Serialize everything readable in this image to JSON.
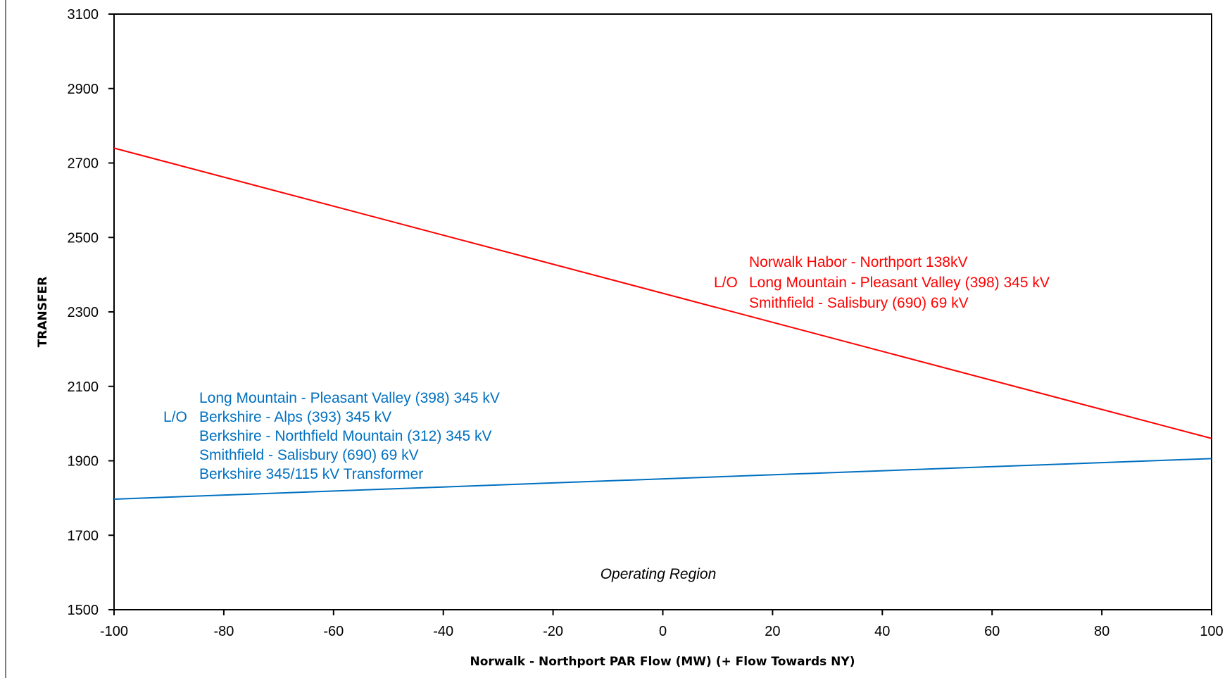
{
  "chart_data": {
    "type": "line",
    "title": "",
    "xlabel": "Norwalk - Northport PAR Flow (MW) (+ Flow Towards NY)",
    "ylabel": "TRANSFER",
    "xlim": [
      -100,
      100
    ],
    "ylim": [
      1500,
      3100
    ],
    "xticks": [
      -100,
      -80,
      -60,
      -40,
      -20,
      0,
      20,
      40,
      60,
      80,
      100
    ],
    "yticks": [
      1500,
      1700,
      1900,
      2100,
      2300,
      2500,
      2700,
      2900,
      3100
    ],
    "xtick_labels": [
      "-100",
      "-80",
      "-60",
      "-40",
      "-20",
      "0",
      "20",
      "40",
      "60",
      "80",
      "100"
    ],
    "ytick_labels": [
      "1500",
      "1700",
      "1900",
      "2100",
      "2300",
      "2500",
      "2700",
      "2900",
      "3100"
    ],
    "grid": false,
    "legend": "none",
    "series": [
      {
        "color": "#ff0000",
        "x": [
          -100,
          100
        ],
        "y": [
          2740,
          1960
        ]
      },
      {
        "color": "#0070c0",
        "x": [
          -100,
          100
        ],
        "y": [
          1797,
          1906
        ]
      }
    ],
    "annotations": [
      {
        "color": "#ff0000",
        "prefix": "L/O",
        "lines": [
          "Norwalk Habor - Northport 138kV",
          "Long Mountain - Pleasant Valley (398) 345 kV",
          "Smithfield - Salisbury (690) 69 kV"
        ]
      },
      {
        "color": "#0070c0",
        "prefix": "L/O",
        "lines": [
          "Long Mountain - Pleasant Valley (398) 345 kV",
          "Berkshire - Alps (393) 345 kV",
          "Berkshire - Northfield Mountain (312) 345 kV",
          "Smithfield - Salisbury (690) 69 kV",
          "Berkshire 345/115 kV Transformer"
        ]
      }
    ],
    "region_label": "Operating Region"
  }
}
